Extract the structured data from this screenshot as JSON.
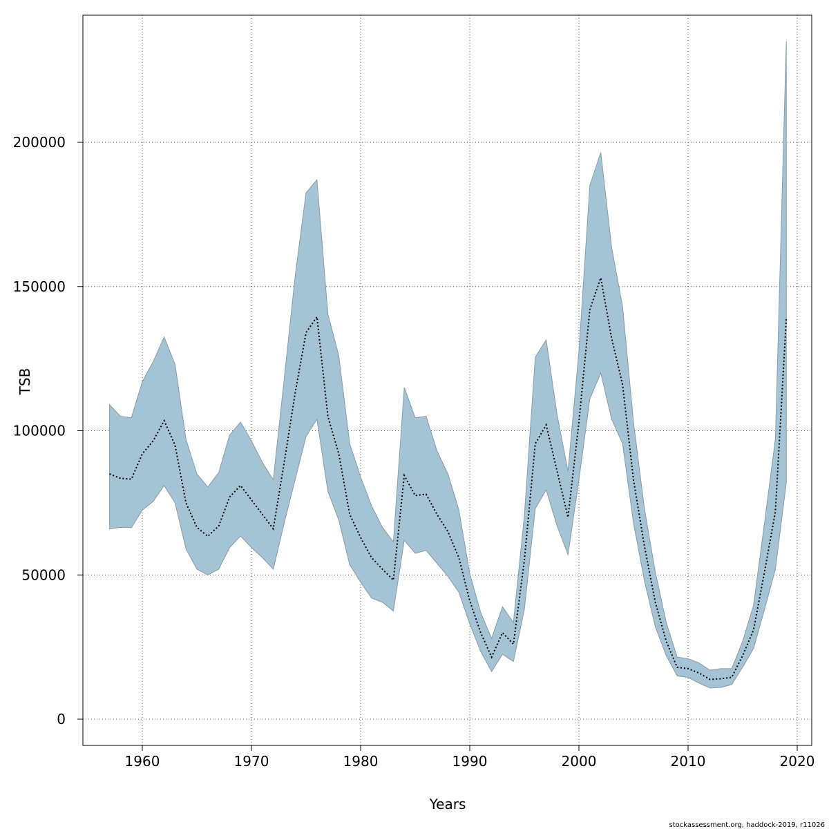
{
  "chart_data": {
    "type": "area",
    "xlabel": "Years",
    "ylabel": "TSB",
    "xlim": [
      1955,
      2021
    ],
    "ylim": [
      -9000,
      244000
    ],
    "grid": true,
    "x_ticks": [
      1960,
      1970,
      1980,
      1990,
      2000,
      2010,
      2020
    ],
    "y_ticks": [
      0,
      50000,
      100000,
      150000,
      200000
    ],
    "x_tick_labels": [
      "1960",
      "1970",
      "1980",
      "1990",
      "2000",
      "2010",
      "2020"
    ],
    "y_tick_labels": [
      "0",
      "50000",
      "100000",
      "150000",
      "200000"
    ],
    "band_color": "#a4c4d6",
    "band_edge_color": "#8a9aa6",
    "line_color": "#000000",
    "years": [
      1957,
      1958,
      1959,
      1960,
      1961,
      1962,
      1963,
      1964,
      1965,
      1966,
      1967,
      1968,
      1969,
      1970,
      1971,
      1972,
      1973,
      1974,
      1975,
      1976,
      1977,
      1978,
      1979,
      1980,
      1981,
      1982,
      1983,
      1984,
      1985,
      1986,
      1987,
      1988,
      1989,
      1990,
      1991,
      1992,
      1993,
      1994,
      1995,
      1996,
      1997,
      1998,
      1999,
      2000,
      2001,
      2002,
      2003,
      2004,
      2005,
      2006,
      2007,
      2008,
      2009,
      2010,
      2011,
      2012,
      2013,
      2014,
      2015,
      2016,
      2017,
      2018,
      2019
    ],
    "series": [
      {
        "name": "TSB estimate",
        "values": [
          85000,
          83500,
          83200,
          92000,
          96500,
          103500,
          95000,
          75000,
          66500,
          63400,
          67000,
          77000,
          81000,
          76000,
          71000,
          66000,
          89000,
          113000,
          134000,
          139500,
          105000,
          92000,
          71000,
          63000,
          56000,
          52000,
          48200,
          84500,
          77500,
          78000,
          71000,
          65000,
          56000,
          41000,
          30000,
          21500,
          30000,
          26000,
          55000,
          95500,
          102000,
          86000,
          70000,
          103000,
          142000,
          153000,
          132000,
          116000,
          83000,
          60000,
          40500,
          27000,
          18000,
          17500,
          16000,
          13800,
          14000,
          14500,
          22000,
          31000,
          51000,
          72000,
          139000
        ]
      },
      {
        "name": "Lower bound",
        "values": [
          66000,
          66500,
          66400,
          72500,
          75500,
          81000,
          75000,
          59000,
          52000,
          50000,
          52000,
          59500,
          63500,
          59500,
          56000,
          52000,
          68000,
          83000,
          98000,
          104000,
          79000,
          69000,
          53500,
          47500,
          42000,
          40500,
          37500,
          62000,
          57500,
          58500,
          54000,
          49500,
          44000,
          33000,
          23500,
          16500,
          22500,
          20000,
          38000,
          73000,
          79500,
          67000,
          57000,
          83000,
          111000,
          120000,
          104000,
          95500,
          68000,
          48000,
          32000,
          22000,
          15000,
          14500,
          12500,
          10800,
          11000,
          12000,
          18000,
          24500,
          38000,
          52000,
          82000
        ]
      },
      {
        "name": "Upper bound",
        "values": [
          109000,
          105000,
          104500,
          117000,
          124000,
          132500,
          123000,
          97000,
          85000,
          80500,
          85500,
          98500,
          103000,
          96500,
          89000,
          83000,
          118000,
          153500,
          182500,
          187000,
          140500,
          126000,
          95500,
          84000,
          74000,
          66500,
          61500,
          115000,
          104500,
          105000,
          93000,
          85000,
          72500,
          50500,
          37000,
          28000,
          39000,
          33500,
          70500,
          125500,
          131500,
          105500,
          86000,
          127500,
          185000,
          196500,
          163500,
          143000,
          103000,
          73000,
          51000,
          33500,
          21500,
          21000,
          19500,
          17000,
          17500,
          17500,
          27000,
          39500,
          68000,
          97000,
          235000
        ]
      }
    ]
  },
  "footer": {
    "credit": "stockassessment.org, haddock-2019, r11026"
  }
}
